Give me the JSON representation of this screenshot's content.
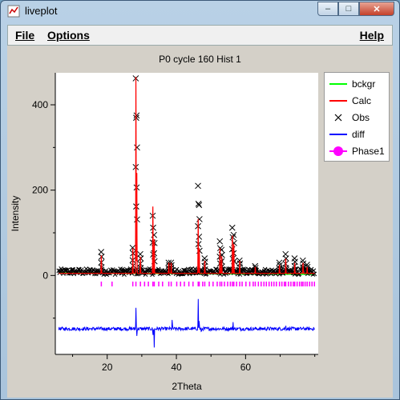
{
  "window": {
    "title": "liveplot",
    "minimize": "–",
    "maximize": "□",
    "close": "✕"
  },
  "menu": {
    "file": "File",
    "options": "Options",
    "help": "Help"
  },
  "chart_data": {
    "type": "line",
    "title": "P0 cycle 160 Hist 1",
    "xlabel": "2Theta",
    "ylabel": "Intensity",
    "xlim": [
      5,
      81
    ],
    "ylim": [
      -185,
      475
    ],
    "xticks": [
      20,
      40,
      60
    ],
    "yticks": [
      0,
      200,
      400
    ],
    "legend_position": "right",
    "background_level": 0,
    "diff_offset": -125,
    "peaks": [
      {
        "x": 18.3,
        "calc": 42,
        "obs": 55
      },
      {
        "x": 27.4,
        "calc": 60,
        "obs": 65
      },
      {
        "x": 28.3,
        "calc": 470,
        "obs": 462
      },
      {
        "x": 28.55,
        "calc": 240,
        "obs": 375
      },
      {
        "x": 29.6,
        "calc": 40,
        "obs": 50
      },
      {
        "x": 33.2,
        "calc": 160,
        "obs": 140
      },
      {
        "x": 33.6,
        "calc": 80,
        "obs": 95
      },
      {
        "x": 37.8,
        "calc": 25,
        "obs": 30
      },
      {
        "x": 38.5,
        "calc": 25,
        "obs": 30
      },
      {
        "x": 46.3,
        "calc": 130,
        "obs": 210
      },
      {
        "x": 46.6,
        "calc": 60,
        "obs": 165
      },
      {
        "x": 48.2,
        "calc": 30,
        "obs": 40
      },
      {
        "x": 52.6,
        "calc": 60,
        "obs": 80
      },
      {
        "x": 53.1,
        "calc": 40,
        "obs": 60
      },
      {
        "x": 56.2,
        "calc": 90,
        "obs": 112
      },
      {
        "x": 56.6,
        "calc": 70,
        "obs": 95
      },
      {
        "x": 58.3,
        "calc": 30,
        "obs": 35
      },
      {
        "x": 62.8,
        "calc": 15,
        "obs": 22
      },
      {
        "x": 69.8,
        "calc": 20,
        "obs": 30
      },
      {
        "x": 71.6,
        "calc": 35,
        "obs": 50
      },
      {
        "x": 74.2,
        "calc": 25,
        "obs": 40
      },
      {
        "x": 76.6,
        "calc": 25,
        "obs": 35
      },
      {
        "x": 77.8,
        "calc": 15,
        "obs": 25
      }
    ],
    "diff_spikes": [
      {
        "x": 28.3,
        "d": 55
      },
      {
        "x": 28.6,
        "d": -20
      },
      {
        "x": 33.2,
        "d": -25
      },
      {
        "x": 33.6,
        "d": -45
      },
      {
        "x": 38.8,
        "d": 30
      },
      {
        "x": 46.3,
        "d": 80
      },
      {
        "x": 46.6,
        "d": 30
      },
      {
        "x": 47.2,
        "d": -15
      },
      {
        "x": 56.4,
        "d": 15
      },
      {
        "x": 71.6,
        "d": 15
      }
    ],
    "phase_ticks": [
      18.3,
      21.4,
      27.4,
      28.3,
      29.6,
      30.8,
      31.9,
      33.2,
      33.6,
      34.9,
      36.0,
      37.8,
      38.5,
      40.1,
      41.2,
      42.3,
      43.6,
      44.8,
      46.3,
      46.6,
      47.6,
      48.2,
      49.5,
      50.6,
      51.8,
      52.6,
      53.1,
      53.9,
      54.8,
      55.6,
      56.2,
      56.6,
      57.4,
      58.3,
      59.0,
      60.1,
      61.2,
      62.2,
      62.8,
      63.7,
      64.5,
      65.3,
      66.0,
      66.8,
      67.5,
      68.2,
      68.9,
      69.8,
      70.5,
      71.2,
      71.6,
      72.4,
      73.1,
      73.8,
      74.2,
      74.9,
      75.6,
      76.2,
      76.6,
      77.2,
      77.8,
      78.5,
      79.2,
      79.9
    ],
    "series": [
      {
        "name": "bckgr",
        "color": "#00ff00",
        "symbol": "line"
      },
      {
        "name": "Calc",
        "color": "#ff0000",
        "symbol": "line"
      },
      {
        "name": "Obs",
        "color": "#000000",
        "symbol": "cross"
      },
      {
        "name": "diff",
        "color": "#0000ff",
        "symbol": "line"
      },
      {
        "name": "Phase1",
        "color": "#ff00ff",
        "symbol": "circle-line"
      }
    ]
  }
}
